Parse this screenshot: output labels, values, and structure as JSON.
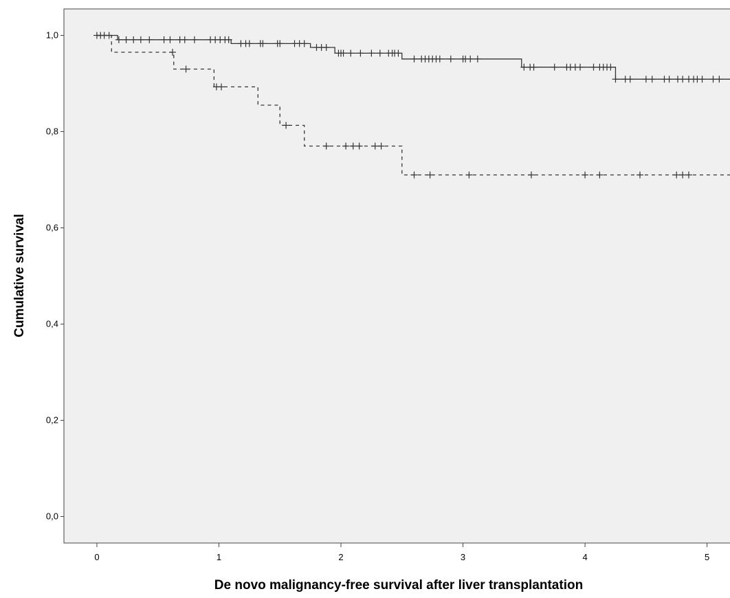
{
  "chart_data": {
    "type": "line",
    "subtype": "kaplan-meier",
    "title": "",
    "xlabel": "De novo malignancy-free survival after liver transplantation",
    "ylabel": "Cumulative survival",
    "xlim": [
      -0.27,
      5.25
    ],
    "ylim": [
      -0.055,
      1.055
    ],
    "x_ticks": [
      0,
      1,
      2,
      3,
      4,
      5
    ],
    "x_tick_labels": [
      "0",
      "1",
      "2",
      "3",
      "4",
      "5"
    ],
    "y_ticks": [
      0.0,
      0.2,
      0.4,
      0.6,
      0.8,
      1.0
    ],
    "y_tick_labels": [
      "0,0",
      "0,2",
      "0,4",
      "0,6",
      "0,8",
      "1,0"
    ],
    "grid": false,
    "background": "#f0f0f0",
    "series": [
      {
        "style": "solid",
        "color": "#333333",
        "steps": [
          [
            0,
            1.0
          ],
          [
            0.17,
            0.991
          ],
          [
            1.1,
            0.983
          ],
          [
            1.75,
            0.975
          ],
          [
            1.95,
            0.963
          ],
          [
            2.5,
            0.951
          ],
          [
            3.48,
            0.934
          ],
          [
            4.25,
            0.909
          ],
          [
            5.25,
            0.909
          ]
        ],
        "censored": [
          0.0,
          0.03,
          0.06,
          0.1,
          0.18,
          0.24,
          0.3,
          0.36,
          0.43,
          0.55,
          0.6,
          0.68,
          0.72,
          0.8,
          0.93,
          0.97,
          1.01,
          1.05,
          1.08,
          1.18,
          1.22,
          1.25,
          1.34,
          1.36,
          1.48,
          1.5,
          1.62,
          1.66,
          1.7,
          1.8,
          1.84,
          1.88,
          1.98,
          2.0,
          2.02,
          2.08,
          2.16,
          2.25,
          2.32,
          2.39,
          2.42,
          2.44,
          2.47,
          2.6,
          2.66,
          2.69,
          2.72,
          2.75,
          2.78,
          2.81,
          2.9,
          3.0,
          3.02,
          3.06,
          3.12,
          3.5,
          3.55,
          3.58,
          3.75,
          3.85,
          3.88,
          3.92,
          3.96,
          4.07,
          4.12,
          4.15,
          4.18,
          4.21,
          4.25,
          4.33,
          4.37,
          4.5,
          4.55,
          4.65,
          4.69,
          4.76,
          4.8,
          4.85,
          4.89,
          4.92,
          4.96,
          5.05,
          5.1,
          5.2
        ]
      },
      {
        "style": "dashed",
        "color": "#333333",
        "steps": [
          [
            0,
            1.0
          ],
          [
            0.12,
            0.965
          ],
          [
            0.63,
            0.93
          ],
          [
            0.96,
            0.893
          ],
          [
            1.32,
            0.855
          ],
          [
            1.5,
            0.813
          ],
          [
            1.7,
            0.77
          ],
          [
            2.5,
            0.71
          ],
          [
            5.25,
            0.71
          ]
        ],
        "censored": [
          0.62,
          0.73,
          0.98,
          1.02,
          1.55,
          1.88,
          2.04,
          2.1,
          2.15,
          2.28,
          2.33,
          2.6,
          2.73,
          3.05,
          3.56,
          4.0,
          4.12,
          4.45,
          4.75,
          4.8,
          4.85,
          5.25
        ]
      }
    ]
  }
}
